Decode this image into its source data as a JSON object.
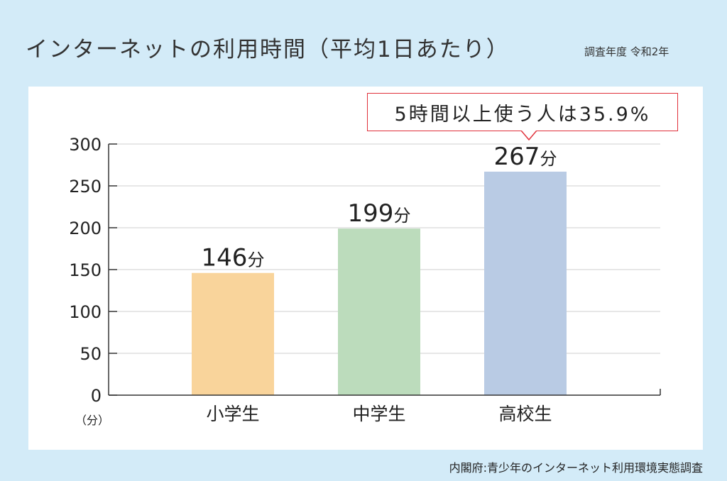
{
  "title": "インターネットの利用時間（平均1日あたり）",
  "survey_year": "調査年度 令和2年",
  "callout": "5時間以上使う人は35.9%",
  "source": "内閣府:青少年のインターネット利用環境実態調査",
  "chart_data": {
    "type": "bar",
    "categories": [
      "小学生",
      "中学生",
      "高校生"
    ],
    "values": [
      146,
      199,
      267
    ],
    "value_labels": [
      "146",
      "199",
      "267"
    ],
    "value_unit": "分",
    "ylabel": "（分）",
    "ylim": [
      0,
      300
    ],
    "yticks": [
      "0",
      "50",
      "100",
      "150",
      "200",
      "250",
      "300"
    ],
    "grid": true,
    "colors": [
      "#f9d49b",
      "#bcdcbc",
      "#b9cbe4"
    ]
  }
}
